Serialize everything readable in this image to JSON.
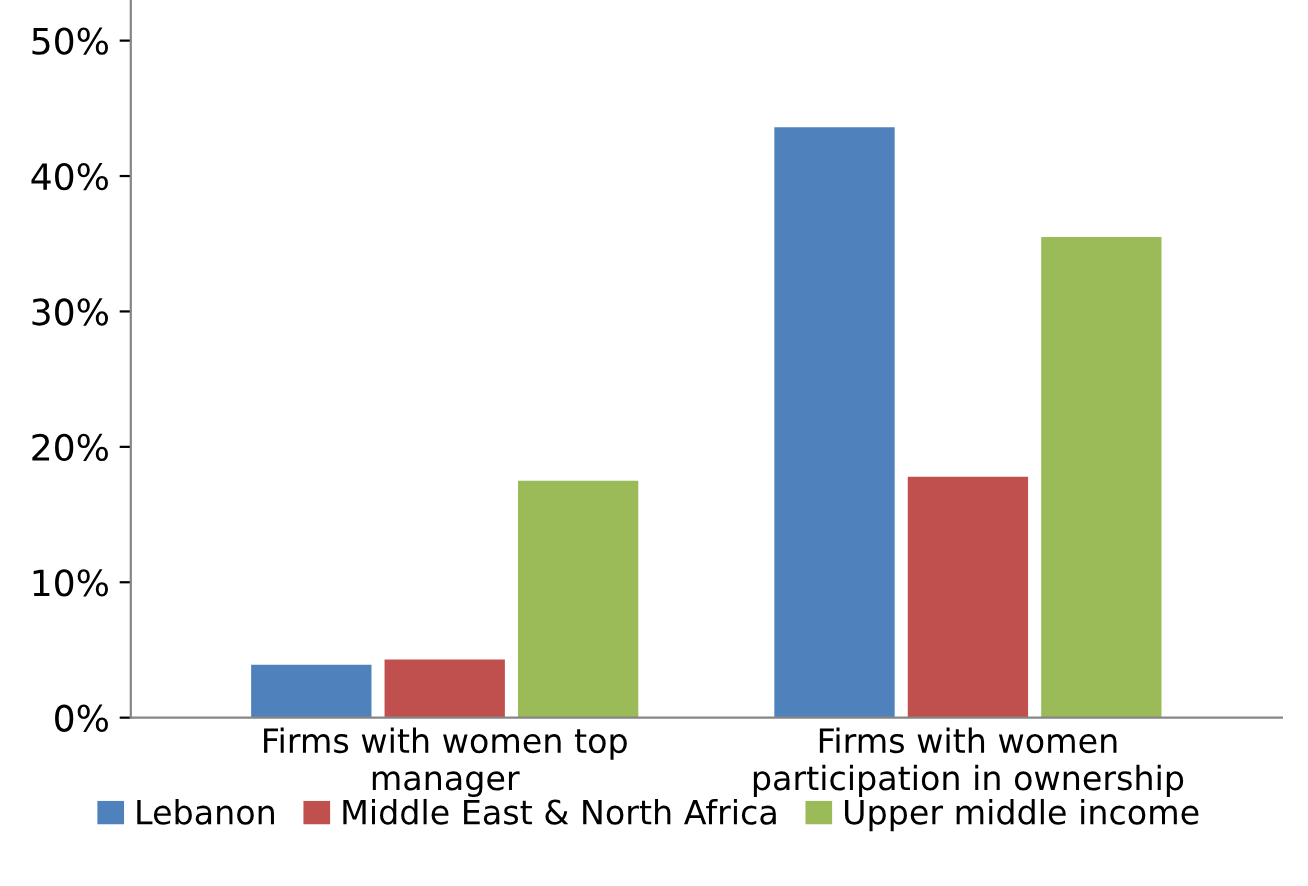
{
  "chart_data": {
    "type": "bar",
    "categories": [
      "Firms with women top\nmanager",
      "Firms with women\nparticipation in ownership"
    ],
    "series": [
      {
        "name": "Lebanon",
        "color": "#4f81bd",
        "values": [
          3.9,
          43.6
        ]
      },
      {
        "name": "Middle East & North Africa",
        "color": "#c0504d",
        "values": [
          4.3,
          17.8
        ]
      },
      {
        "name": "Upper middle income",
        "color": "#9bbb59",
        "values": [
          17.5,
          35.5
        ]
      }
    ],
    "ylim": [
      0,
      53
    ],
    "yticks": [
      {
        "value": 0,
        "label": "0%"
      },
      {
        "value": 10,
        "label": "10%"
      },
      {
        "value": 20,
        "label": "20%"
      },
      {
        "value": 30,
        "label": "30%"
      },
      {
        "value": 40,
        "label": "40%"
      },
      {
        "value": 50,
        "label": "50%"
      }
    ],
    "grid": false,
    "legend": "bottom"
  }
}
